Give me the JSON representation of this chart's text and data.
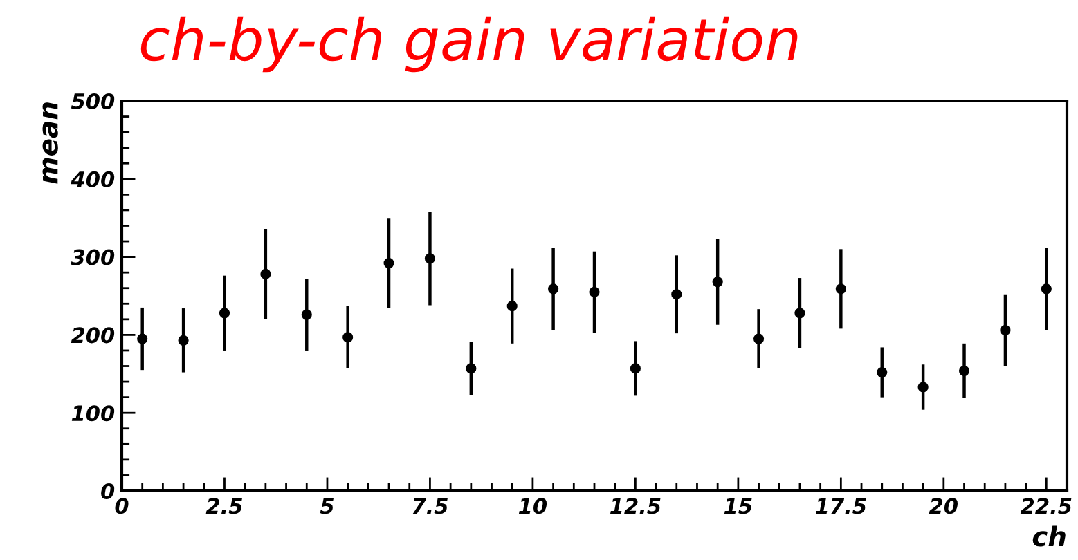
{
  "chart_data": {
    "type": "scatter",
    "title": "ch-by-ch gain variation",
    "xlabel": "ch",
    "ylabel": "mean",
    "x": [
      0.5,
      1.5,
      2.5,
      3.5,
      4.5,
      5.5,
      6.5,
      7.5,
      8.5,
      9.5,
      10.5,
      11.5,
      12.5,
      13.5,
      14.5,
      15.5,
      16.5,
      17.5,
      18.5,
      19.5,
      20.5,
      21.5,
      22.5
    ],
    "series": [
      {
        "color": "#000000",
        "values": [
          195,
          193,
          228,
          278,
          226,
          197,
          292,
          298,
          157,
          237,
          259,
          255,
          157,
          252,
          268,
          195,
          228,
          259,
          152,
          133,
          154,
          206,
          259
        ],
        "errors": [
          40,
          41,
          48,
          58,
          46,
          40,
          57,
          60,
          34,
          48,
          53,
          52,
          35,
          50,
          55,
          38,
          45,
          51,
          32,
          29,
          35,
          46,
          53
        ]
      }
    ],
    "marker": "circle",
    "grid": false,
    "xlim": [
      0,
      23
    ],
    "xticks": [
      0,
      2.5,
      5,
      7.5,
      10,
      12.5,
      15,
      17.5,
      20,
      22.5
    ],
    "ylim": [
      0,
      500
    ],
    "yticks": [
      0,
      100,
      200,
      300,
      400,
      500
    ]
  }
}
